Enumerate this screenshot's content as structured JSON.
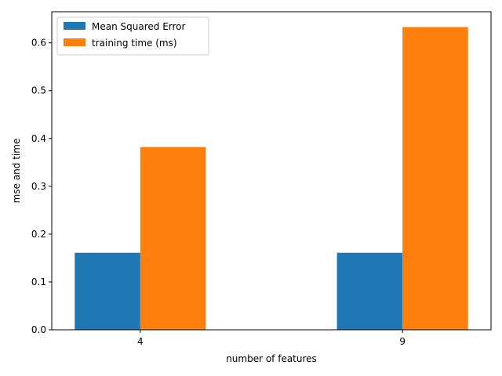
{
  "chart_data": {
    "type": "bar",
    "title": "",
    "xlabel": "number of features",
    "ylabel": "mse and time",
    "categories": [
      "4",
      "9"
    ],
    "series": [
      {
        "name": "Mean Squared Error",
        "values": [
          0.161,
          0.161
        ],
        "color": "#1f77b4"
      },
      {
        "name": "training time (ms)",
        "values": [
          0.382,
          0.633
        ],
        "color": "#ff7f0e"
      }
    ],
    "ylim": [
      0,
      0.665
    ],
    "yticks": [
      0.0,
      0.1,
      0.2,
      0.3,
      0.4,
      0.5,
      0.6
    ],
    "yticklabels": [
      "0.0",
      "0.1",
      "0.2",
      "0.3",
      "0.4",
      "0.5",
      "0.6"
    ],
    "grid": false,
    "legend": "top-left"
  }
}
